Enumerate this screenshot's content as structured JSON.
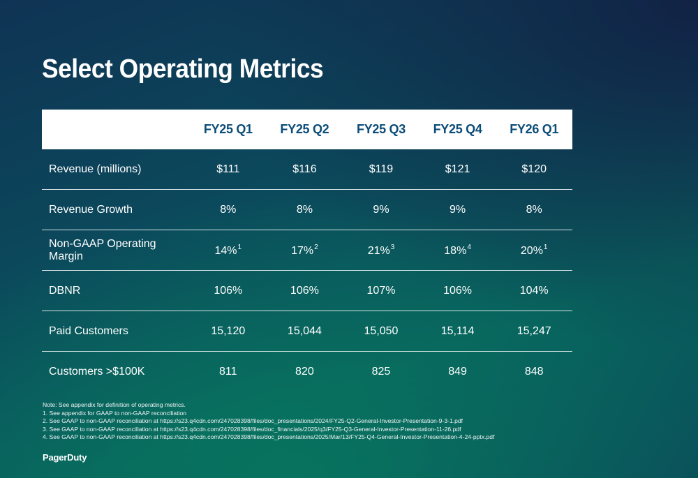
{
  "slide": {
    "title": "Select Operating Metrics",
    "brand": "PagerDuty"
  },
  "table": {
    "columns": [
      "",
      "FY25 Q1",
      "FY25 Q2",
      "FY25 Q3",
      "FY25 Q4",
      "FY26 Q1"
    ],
    "rows": [
      {
        "label": "Revenue (millions)",
        "cells": [
          {
            "value": "$111",
            "note": ""
          },
          {
            "value": "$116",
            "note": ""
          },
          {
            "value": "$119",
            "note": ""
          },
          {
            "value": "$121",
            "note": ""
          },
          {
            "value": "$120",
            "note": ""
          }
        ]
      },
      {
        "label": "Revenue Growth",
        "cells": [
          {
            "value": "8%",
            "note": ""
          },
          {
            "value": "8%",
            "note": ""
          },
          {
            "value": "9%",
            "note": ""
          },
          {
            "value": "9%",
            "note": ""
          },
          {
            "value": "8%",
            "note": ""
          }
        ]
      },
      {
        "label": "Non-GAAP Operating Margin",
        "cells": [
          {
            "value": "14%",
            "note": "1"
          },
          {
            "value": "17%",
            "note": "2"
          },
          {
            "value": "21%",
            "note": "3"
          },
          {
            "value": "18%",
            "note": "4"
          },
          {
            "value": "20%",
            "note": "1"
          }
        ]
      },
      {
        "label": "DBNR",
        "cells": [
          {
            "value": "106%",
            "note": ""
          },
          {
            "value": "106%",
            "note": ""
          },
          {
            "value": "107%",
            "note": ""
          },
          {
            "value": "106%",
            "note": ""
          },
          {
            "value": "104%",
            "note": ""
          }
        ]
      },
      {
        "label": "Paid Customers",
        "cells": [
          {
            "value": "15,120",
            "note": ""
          },
          {
            "value": "15,044",
            "note": ""
          },
          {
            "value": "15,050",
            "note": ""
          },
          {
            "value": "15,114",
            "note": ""
          },
          {
            "value": "15,247",
            "note": ""
          }
        ]
      },
      {
        "label": "Customers >$100K",
        "cells": [
          {
            "value": "811",
            "note": ""
          },
          {
            "value": "820",
            "note": ""
          },
          {
            "value": "825",
            "note": ""
          },
          {
            "value": "849",
            "note": ""
          },
          {
            "value": "848",
            "note": ""
          }
        ]
      }
    ]
  },
  "footnotes": [
    "Note: See appendix for definition of operating metrics.",
    "1. See appendix for GAAP to non-GAAP reconciliation",
    "2. See GAAP to non-GAAP reconciliation at https://s23.q4cdn.com/247028398/files/doc_presentations/2024/FY25-Q2-General-Investor-Presentation-9-3-1.pdf",
    "3. See GAAP to non-GAAP reconciliation at https://s23.q4cdn.com/247028398/files/doc_financials/2025/q3/FY25-Q3-General-Investor-Presentation-11-26.pdf",
    "4. See GAAP to non-GAAP reconciliation at https://s23.q4cdn.com/247028398/files/doc_presentations/2025/Mar/13/FY25-Q4-General-Investor-Presentation-4-24-pptx.pdf"
  ],
  "colors": {
    "header_text": "#0b4c78",
    "header_bg": "#ffffff",
    "background_teal": "#08625e",
    "background_navy": "#122044"
  }
}
